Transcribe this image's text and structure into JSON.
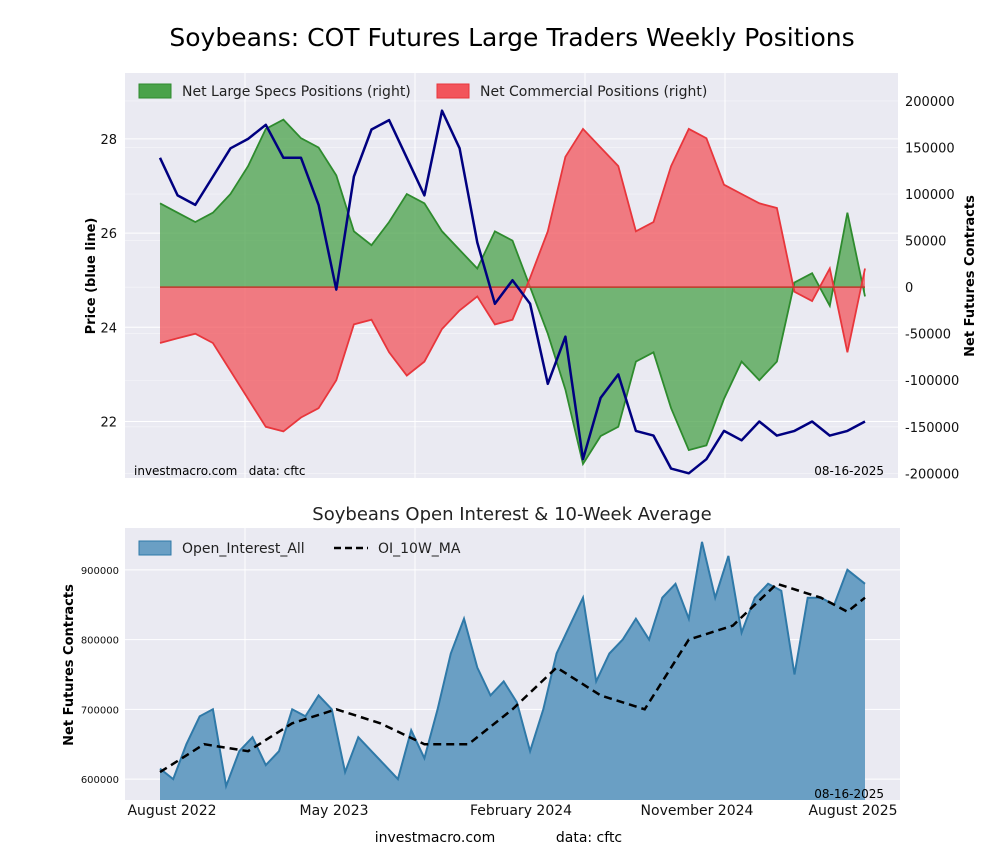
{
  "colors": {
    "panel_bg": "#eaeaf2",
    "grid": "#ffffff",
    "price": "#000080",
    "specs_fill": "#4aa24a",
    "specs_line": "#2e8b2e",
    "comm_fill": "#f2545b",
    "comm_line": "#e8363c",
    "oi_fill": "#6a9fc4",
    "oi_line": "#2f79a8",
    "ma_line": "#000000"
  },
  "chart_data": [
    {
      "type": "area",
      "title": "Soybeans: COT Futures Large Traders Weekly Positions",
      "ylabel_left": "Price (blue line)",
      "ylabel_right": "Net Futures Contracts",
      "yticks_left": [
        "22",
        "24",
        "26",
        "28"
      ],
      "ylim_left": [
        20.8,
        29.4
      ],
      "yticks_right": [
        "200000",
        "150000",
        "100000",
        "50000",
        "0",
        "-50000",
        "-100000",
        "-150000",
        "-200000"
      ],
      "ylim_right": [
        -205000,
        230000
      ],
      "x_range": [
        0,
        160
      ],
      "legend": [
        "Net Large Specs Positions (right)",
        "Net Commercial Positions (right)"
      ],
      "watermark": "investmacro.com   data: cftc",
      "date_label": "08-16-2025",
      "series": [
        {
          "name": "Net Large Specs Positions (right)",
          "x": [
            0,
            4,
            8,
            12,
            16,
            20,
            24,
            28,
            32,
            36,
            40,
            44,
            48,
            52,
            56,
            60,
            64,
            68,
            72,
            76,
            80,
            84,
            88,
            92,
            96,
            100,
            104,
            108,
            112,
            116,
            120,
            124,
            128,
            132,
            136,
            140,
            144,
            148,
            152,
            156,
            160
          ],
          "values": [
            90000,
            80000,
            70000,
            80000,
            100000,
            130000,
            170000,
            180000,
            160000,
            150000,
            120000,
            60000,
            45000,
            70000,
            100000,
            90000,
            60000,
            40000,
            20000,
            60000,
            50000,
            0,
            -50000,
            -110000,
            -190000,
            -160000,
            -150000,
            -80000,
            -70000,
            -130000,
            -175000,
            -170000,
            -120000,
            -80000,
            -100000,
            -80000,
            5000,
            15000,
            -20000,
            80000,
            -10000
          ]
        },
        {
          "name": "Net Commercial Positions (right)",
          "x": [
            0,
            4,
            8,
            12,
            16,
            20,
            24,
            28,
            32,
            36,
            40,
            44,
            48,
            52,
            56,
            60,
            64,
            68,
            72,
            76,
            80,
            84,
            88,
            92,
            96,
            100,
            104,
            108,
            112,
            116,
            120,
            124,
            128,
            132,
            136,
            140,
            144,
            148,
            152,
            156,
            160
          ],
          "values": [
            -60000,
            -55000,
            -50000,
            -60000,
            -90000,
            -120000,
            -150000,
            -155000,
            -140000,
            -130000,
            -100000,
            -40000,
            -35000,
            -70000,
            -95000,
            -80000,
            -45000,
            -25000,
            -10000,
            -40000,
            -35000,
            10000,
            60000,
            140000,
            170000,
            150000,
            130000,
            60000,
            70000,
            130000,
            170000,
            160000,
            110000,
            100000,
            90000,
            85000,
            -5000,
            -15000,
            20000,
            -70000,
            20000
          ]
        },
        {
          "name": "Price (blue line)",
          "x": [
            0,
            4,
            8,
            12,
            16,
            20,
            24,
            28,
            32,
            36,
            40,
            44,
            48,
            52,
            56,
            60,
            64,
            68,
            72,
            76,
            80,
            84,
            88,
            92,
            96,
            100,
            104,
            108,
            112,
            116,
            120,
            124,
            128,
            132,
            136,
            140,
            144,
            148,
            152,
            156,
            160
          ],
          "values": [
            27.6,
            26.8,
            26.6,
            27.2,
            27.8,
            28.0,
            28.3,
            27.6,
            27.6,
            26.6,
            24.8,
            27.2,
            28.2,
            28.4,
            27.6,
            26.8,
            28.6,
            27.8,
            25.8,
            24.5,
            25.0,
            24.5,
            22.8,
            23.8,
            21.2,
            22.5,
            23.0,
            21.8,
            21.7,
            21.0,
            20.9,
            21.2,
            21.8,
            21.6,
            22.0,
            21.7,
            21.8,
            22.0,
            21.7,
            21.8,
            22.0
          ]
        }
      ]
    },
    {
      "type": "area",
      "title": "Soybeans Open Interest & 10-Week Average",
      "ylabel": "Net Futures Contracts",
      "yticks": [
        "900000",
        "800000",
        "700000",
        "600000"
      ],
      "ylim": [
        570000,
        960000
      ],
      "x_range": [
        0,
        160
      ],
      "legend": [
        "Open_Interest_All",
        "OI_10W_MA"
      ],
      "date_label": "08-16-2025",
      "xticks": [
        "August 2022",
        "May 2023",
        "February 2024",
        "November 2024",
        "August 2025"
      ],
      "series": [
        {
          "name": "Open_Interest_All",
          "x": [
            0,
            3,
            6,
            9,
            12,
            15,
            18,
            21,
            24,
            27,
            30,
            33,
            36,
            39,
            42,
            45,
            48,
            51,
            54,
            57,
            60,
            63,
            66,
            69,
            72,
            75,
            78,
            81,
            84,
            87,
            90,
            93,
            96,
            99,
            102,
            105,
            108,
            111,
            114,
            117,
            120,
            123,
            126,
            129,
            132,
            135,
            138,
            141,
            144,
            147,
            150,
            153,
            156,
            160
          ],
          "values": [
            615000,
            600000,
            650000,
            690000,
            700000,
            590000,
            640000,
            660000,
            620000,
            640000,
            700000,
            690000,
            720000,
            700000,
            610000,
            660000,
            640000,
            620000,
            600000,
            670000,
            630000,
            700000,
            780000,
            830000,
            760000,
            720000,
            740000,
            710000,
            640000,
            700000,
            780000,
            820000,
            860000,
            740000,
            780000,
            800000,
            830000,
            800000,
            860000,
            880000,
            830000,
            940000,
            860000,
            920000,
            810000,
            860000,
            880000,
            870000,
            750000,
            860000,
            860000,
            850000,
            900000,
            880000
          ]
        },
        {
          "name": "OI_10W_MA",
          "x": [
            0,
            10,
            20,
            30,
            40,
            50,
            60,
            70,
            80,
            90,
            100,
            110,
            120,
            130,
            140,
            150,
            156,
            160
          ],
          "values": [
            610000,
            650000,
            640000,
            680000,
            700000,
            680000,
            650000,
            650000,
            700000,
            760000,
            720000,
            700000,
            800000,
            820000,
            880000,
            860000,
            840000,
            860000
          ]
        }
      ]
    }
  ],
  "footer": {
    "site": "investmacro.com",
    "source": "data: cftc"
  }
}
